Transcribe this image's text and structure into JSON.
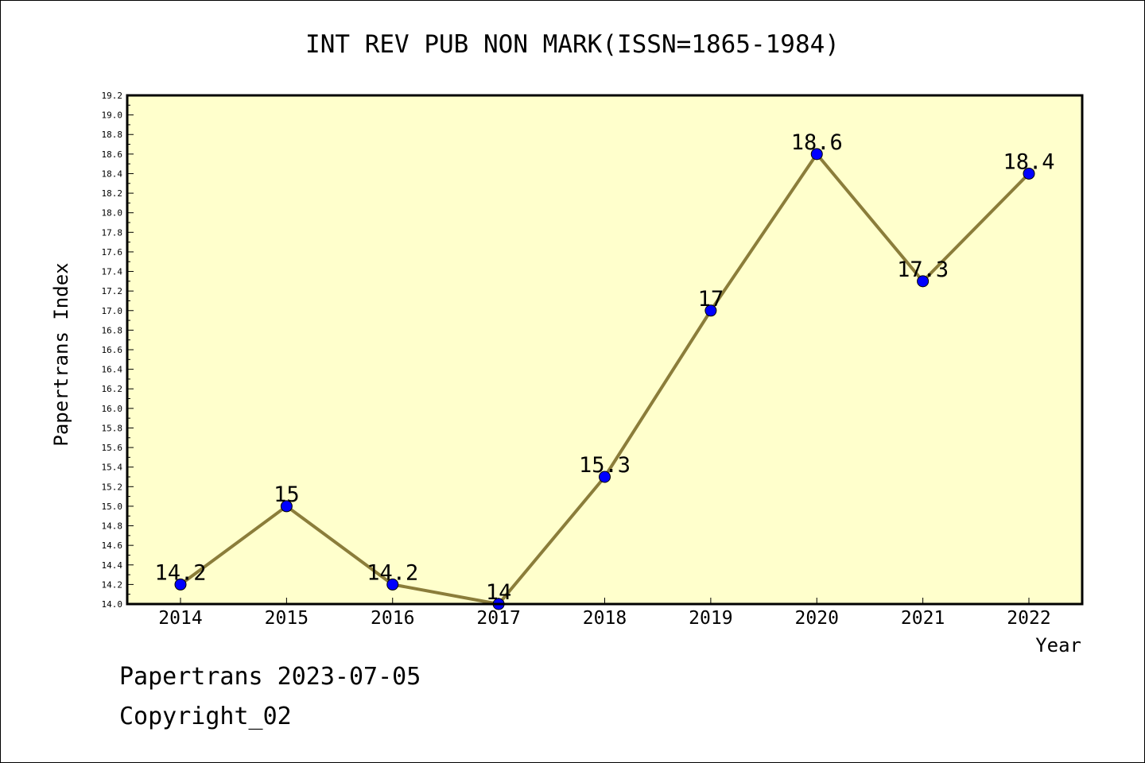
{
  "chart_data": {
    "type": "line",
    "title": "INT REV PUB NON MARK(ISSN=1865-1984)",
    "xlabel": "Year",
    "ylabel": "Papertrans Index",
    "categories": [
      "2014",
      "2015",
      "2016",
      "2017",
      "2018",
      "2019",
      "2020",
      "2021",
      "2022"
    ],
    "series": [
      {
        "values": [
          14.2,
          15,
          14.2,
          14,
          15.3,
          17,
          18.6,
          17.3,
          18.4
        ],
        "labels": [
          "14.2",
          "15",
          "14.2",
          "14",
          "15.3",
          "17",
          "18.6",
          "17.3",
          "18.4"
        ]
      }
    ],
    "ylim": [
      14.0,
      19.2
    ],
    "ytick_step": 0.2,
    "grid": false,
    "legend": "none",
    "colors": {
      "plot_background": "#ffffcc",
      "line": "#8b7d3a",
      "marker": "#0000ff",
      "marker_edge": "#000000"
    }
  },
  "footer": {
    "date_line": "Papertrans 2023-07-05",
    "copyright_line": "Copyright_02"
  }
}
